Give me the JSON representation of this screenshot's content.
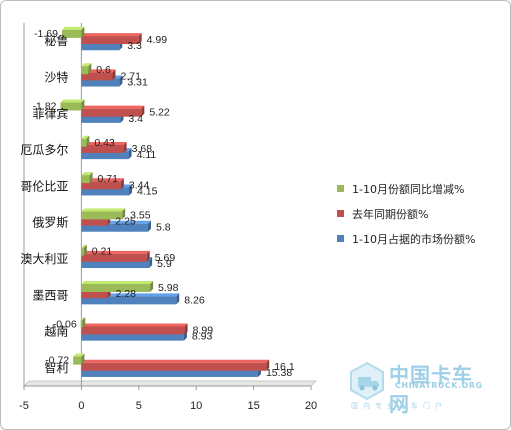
{
  "chart_data": {
    "type": "bar",
    "orientation": "horizontal",
    "categories": [
      "秘鲁",
      "沙特",
      "菲律宾",
      "厄瓜多尔",
      "哥伦比亚",
      "俄罗斯",
      "澳大利亚",
      "墨西哥",
      "越南",
      "智利"
    ],
    "series": [
      {
        "name": "1-10月份额同比增减%",
        "color": "#9bbb59",
        "values": [
          -1.69,
          0.6,
          -1.82,
          0.43,
          0.71,
          3.55,
          0.21,
          5.98,
          -0.06,
          -0.72
        ],
        "labels": [
          "-1.69",
          "0.6",
          "-1.82",
          "0.43",
          "0.71",
          "3.55",
          "0.21",
          "5.98",
          "-0.06",
          "-0.72"
        ]
      },
      {
        "name": "去年同期份额%",
        "color": "#c0504d",
        "values": [
          4.99,
          2.71,
          5.22,
          3.68,
          3.44,
          2.25,
          5.69,
          2.28,
          8.99,
          16.1
        ],
        "labels": [
          "4.99",
          "2.71",
          "5.22",
          "3.68",
          "3.44",
          "2.25",
          "5.69",
          "2.28",
          "8.99",
          "16.1"
        ]
      },
      {
        "name": "1-10月占据的市场份额%",
        "color": "#4f81bd",
        "values": [
          3.3,
          3.31,
          3.4,
          4.11,
          4.15,
          5.8,
          5.9,
          8.26,
          8.93,
          15.38
        ],
        "labels": [
          "3.3",
          "3.31",
          "3.4",
          "4.11",
          "4.15",
          "5.8",
          "5.9",
          "8.26",
          "8.93",
          "15.38"
        ]
      }
    ],
    "xlim": [
      -5,
      20
    ],
    "xticks": [
      -5,
      0,
      5,
      10,
      15,
      20
    ],
    "xtick_labels": [
      "-5",
      "0",
      "5",
      "10",
      "15",
      "20"
    ],
    "legend_position": "right",
    "grid": false
  },
  "watermark": {
    "cn": "中国卡车网",
    "en": "CHINATRUCK.ORG",
    "sub": "国内专业卡车门户"
  }
}
